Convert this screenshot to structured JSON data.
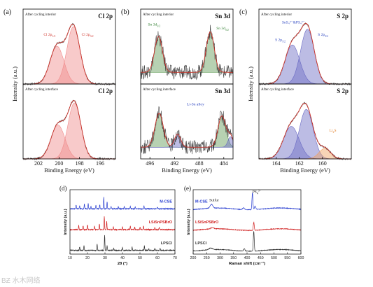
{
  "colors": {
    "envelope": "#d0342c",
    "green_fill": "#5f9a55",
    "blue_fill": "#6a6ac4",
    "orange_fill": "#f0a060",
    "red_fill": "#f08a8a",
    "mcse": "#2a3fd0",
    "lsisn": "#d02020",
    "lpscl": "#303030"
  },
  "watermark": "BƵ 水木网络",
  "chart_data": [
    {
      "id": "a",
      "type": "line",
      "panel_label": "(a)",
      "xlabel": "Binding Energy (eV)",
      "ylabel": "Intensity (a.u.)",
      "xlim": [
        203.5,
        194.5
      ],
      "xticks": [
        202,
        200,
        198,
        196
      ],
      "subplots": [
        {
          "label": "After cycling interior",
          "element": "Cl 2p",
          "ymax": 1.15,
          "fill_color": "#f08a8a",
          "peaks": [
            {
              "name": "Cl 2p1/2",
              "center": 200.2,
              "height": 0.58,
              "fwhm": 1.6
            },
            {
              "name": "Cl 2p3/2",
              "center": 198.6,
              "height": 0.88,
              "fwhm": 1.5
            }
          ],
          "annotations": [
            {
              "text": "Cl 2p",
              "sub": "1/2",
              "x": 201.5,
              "y": 0.74
            },
            {
              "text": "Cl 2p",
              "sub": "3/2",
              "x": 197.8,
              "y": 0.74
            }
          ]
        },
        {
          "label": "After cycling interface",
          "element": "Cl 2p",
          "ymax": 1.15,
          "fill_color": "#f08a8a",
          "peaks": [
            {
              "name": "Cl 2p1/2",
              "center": 200.1,
              "height": 0.52,
              "fwhm": 1.6
            },
            {
              "name": "Cl 2p3/2",
              "center": 198.5,
              "height": 0.86,
              "fwhm": 1.5
            }
          ],
          "annotations": []
        }
      ]
    },
    {
      "id": "b",
      "type": "line",
      "panel_label": "(b)",
      "xlabel": "Binding Energy (eV)",
      "ylabel": "",
      "xlim": [
        497.5,
        482.5
      ],
      "xticks": [
        496,
        492,
        488,
        484
      ],
      "subplots": [
        {
          "label": "After cycling interior",
          "element": "Sn 3d",
          "ymax": 1.15,
          "fill_color": "#5f9a55",
          "baseline": 0.18,
          "noise": true,
          "peaks": [
            {
              "name": "Sn 3d3/2",
              "center": 494.6,
              "height": 0.55,
              "fwhm": 1.5
            },
            {
              "name": "Sn 3d5/2",
              "center": 486.2,
              "height": 0.62,
              "fwhm": 1.5
            }
          ],
          "annotations": [
            {
              "text": "Sn 3d",
              "sub": "3/2",
              "x": 496.3,
              "y": 0.9,
              "color": "green"
            },
            {
              "text": "Sn 3d",
              "sub": "5/2",
              "x": 485.2,
              "y": 0.84,
              "color": "green"
            }
          ]
        },
        {
          "label": "After cycling interface",
          "element": "Sn 3d",
          "ymax": 1.15,
          "fill_color": "#5f9a55",
          "baseline": 0.18,
          "noise": true,
          "peaks": [
            {
              "name": "Sn 3d3/2",
              "center": 494.5,
              "height": 0.52,
              "fwhm": 1.6
            },
            {
              "name": "Li-Sn alloy",
              "center": 491.5,
              "height": 0.2,
              "fwhm": 1.2,
              "fill_color": "#6a6ac4"
            },
            {
              "name": "Sn 3d5/2",
              "center": 484.3,
              "height": 0.48,
              "fwhm": 1.5
            },
            {
              "name": "Li-Sn alloy",
              "center": 482.9,
              "height": 0.16,
              "fwhm": 1.0,
              "fill_color": "#6a6ac4"
            }
          ],
          "annotations": [
            {
              "text": "Li-Sn alloy",
              "x": 490.0,
              "y": 0.82,
              "color": "blue"
            }
          ]
        }
      ]
    },
    {
      "id": "c",
      "type": "line",
      "panel_label": "(c)",
      "xlabel": "Binding Energy (eV)",
      "ylabel": "Intensity (a.u.)",
      "xlim": [
        165.5,
        157.5
      ],
      "xticks": [
        164,
        162,
        160
      ],
      "subplots": [
        {
          "label": "After cycling interior",
          "element": "S 2p",
          "ymax": 1.15,
          "fill_color": "#6a6ac4",
          "peaks": [
            {
              "name": "S 2p1/2",
              "center": 162.6,
              "height": 0.6,
              "fwhm": 1.5
            },
            {
              "name": "S 2p3/2",
              "center": 161.3,
              "height": 0.84,
              "fwhm": 1.4
            }
          ],
          "annotations": [
            {
              "text": "SnS₄⁴⁻&PS₄³⁻",
              "x": 163.5,
              "y": 0.93,
              "color": "blue"
            },
            {
              "text": "S 2p",
              "sub": "1/2",
              "x": 164.1,
              "y": 0.66,
              "color": "blue"
            },
            {
              "text": "S 2p",
              "sub": "3/2",
              "x": 160.4,
              "y": 0.74,
              "color": "blue"
            }
          ]
        },
        {
          "label": "After cycling interface",
          "element": "S 2p",
          "ymax": 1.15,
          "fill_color": "#6a6ac4",
          "peaks": [
            {
              "name": "S 2p1/2",
              "center": 162.7,
              "height": 0.5,
              "fwhm": 1.6
            },
            {
              "name": "S 2p3/2",
              "center": 161.4,
              "height": 0.76,
              "fwhm": 1.4
            },
            {
              "name": "Li2S",
              "center": 159.8,
              "height": 0.16,
              "fwhm": 1.2,
              "fill_color": "#f0a060"
            }
          ],
          "annotations": [
            {
              "text": "Li",
              "sub": "2",
              "text2": "S",
              "x": 159.4,
              "y": 0.42,
              "color": "orange"
            }
          ]
        }
      ]
    },
    {
      "id": "d",
      "type": "line",
      "panel_label": "(d)",
      "xlabel": "2θ (°)",
      "ylabel": "Intensity (a.u.)",
      "xlim": [
        10,
        70
      ],
      "xticks": [
        10,
        20,
        30,
        40,
        50,
        60,
        70
      ],
      "series": [
        {
          "name": "M-CSE",
          "color": "#2a3fd0",
          "offset": 2.0,
          "peaks": [
            [
              13.5,
              0.18
            ],
            [
              15.5,
              0.14
            ],
            [
              18.2,
              0.22
            ],
            [
              20.4,
              0.26
            ],
            [
              22.0,
              0.12
            ],
            [
              24.8,
              0.16
            ],
            [
              27.0,
              0.2
            ],
            [
              29.3,
              0.55
            ],
            [
              31.2,
              0.35
            ],
            [
              33.5,
              0.1
            ],
            [
              37.6,
              0.1
            ],
            [
              41.0,
              0.12
            ],
            [
              44.5,
              0.12
            ],
            [
              47.3,
              0.1
            ],
            [
              52.3,
              0.12
            ],
            [
              60.0,
              0.08
            ]
          ]
        },
        {
          "name": "LSiSnPSBrO",
          "color": "#d02020",
          "offset": 1.0,
          "peaks": [
            [
              15.0,
              0.2
            ],
            [
              17.5,
              0.18
            ],
            [
              20.0,
              0.24
            ],
            [
              24.0,
              0.15
            ],
            [
              26.8,
              0.28
            ],
            [
              29.6,
              0.62
            ],
            [
              31.0,
              0.4
            ],
            [
              34.8,
              0.12
            ],
            [
              40.0,
              0.14
            ],
            [
              44.5,
              0.18
            ],
            [
              47.0,
              0.14
            ],
            [
              50.0,
              0.12
            ],
            [
              52.0,
              0.16
            ],
            [
              58.5,
              0.1
            ],
            [
              61.0,
              0.1
            ]
          ]
        },
        {
          "name": "LPSCl",
          "color": "#303030",
          "offset": 0.0,
          "peaks": [
            [
              15.5,
              0.16
            ],
            [
              18.0,
              0.22
            ],
            [
              25.5,
              0.3
            ],
            [
              29.8,
              0.75
            ],
            [
              31.2,
              0.22
            ],
            [
              35.0,
              0.1
            ],
            [
              40.0,
              0.14
            ],
            [
              45.5,
              0.16
            ],
            [
              52.5,
              0.22
            ],
            [
              55.0,
              0.08
            ],
            [
              58.5,
              0.1
            ],
            [
              61.5,
              0.1
            ]
          ]
        }
      ]
    },
    {
      "id": "e",
      "type": "line",
      "panel_label": "(e)",
      "xlabel": "Raman shift (cm⁻¹)",
      "ylabel": "Intensity (a.u.)",
      "xlim": [
        200,
        600
      ],
      "xticks": [
        200,
        250,
        300,
        350,
        400,
        450,
        500,
        550,
        600
      ],
      "series": [
        {
          "name": "M-CSE",
          "color": "#2a3fd0",
          "offset": 2.0,
          "peaks": [
            [
              268,
              0.18,
              12
            ],
            [
              387,
              0.08,
              8
            ],
            [
              420,
              0.8,
              4
            ],
            [
              430,
              0.15,
              6
            ]
          ]
        },
        {
          "name": "LSiSnPSBrO",
          "color": "#d02020",
          "offset": 1.0,
          "peaks": [
            [
              270,
              0.05,
              15
            ],
            [
              425,
              0.38,
              4
            ]
          ]
        },
        {
          "name": "LPSCl",
          "color": "#303030",
          "offset": 0.0,
          "peaks": [
            [
              265,
              0.08,
              15
            ],
            [
              390,
              0.12,
              6
            ],
            [
              425,
              0.95,
              4
            ]
          ]
        }
      ],
      "annotations": [
        {
          "text": "Sulfur",
          "x": 260,
          "y": 2.55
        },
        {
          "text": "PS",
          "sub": "4",
          "sup": "3−",
          "x": 420,
          "y": 2.95
        }
      ]
    }
  ]
}
